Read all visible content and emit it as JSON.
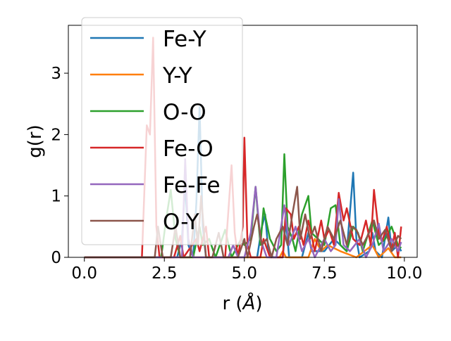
{
  "chart_data": {
    "type": "line",
    "xlabel": "r",
    "xlabel_unit": "Å",
    "ylabel": "g(r)",
    "xlim": [
      -0.5,
      10.4
    ],
    "ylim": [
      0,
      3.78
    ],
    "x_ticks": [
      "0.0",
      "2.5",
      "5.0",
      "7.5",
      "10.0"
    ],
    "x_tick_values": [
      0,
      2.5,
      5.0,
      7.5,
      10.0
    ],
    "y_ticks": [
      "0",
      "1",
      "2",
      "3"
    ],
    "y_tick_values": [
      0,
      1,
      2,
      3
    ],
    "grid": false,
    "legend_position": "upper-left",
    "series": [
      {
        "name": "Fe-Y",
        "color": "#1f77b4",
        "points": [
          [
            0,
            0
          ],
          [
            1.95,
            0
          ],
          [
            2.4,
            0
          ],
          [
            2.9,
            0
          ],
          [
            3.05,
            0.3
          ],
          [
            3.15,
            1.2
          ],
          [
            3.25,
            0.2
          ],
          [
            3.4,
            0
          ],
          [
            3.5,
            0.9
          ],
          [
            3.6,
            2.45
          ],
          [
            3.7,
            0.5
          ],
          [
            3.8,
            0
          ],
          [
            4.0,
            0
          ],
          [
            4.5,
            0
          ],
          [
            5.0,
            0
          ],
          [
            5.4,
            0
          ],
          [
            5.55,
            0.5
          ],
          [
            5.65,
            0.7
          ],
          [
            5.75,
            0.1
          ],
          [
            5.9,
            0
          ],
          [
            6.2,
            0
          ],
          [
            6.3,
            0.6
          ],
          [
            6.4,
            0
          ],
          [
            6.8,
            0
          ],
          [
            7.0,
            0.4
          ],
          [
            7.1,
            0.1
          ],
          [
            7.5,
            0.1
          ],
          [
            7.8,
            0.3
          ],
          [
            8.0,
            0.2
          ],
          [
            8.2,
            0.1
          ],
          [
            8.4,
            1.38
          ],
          [
            8.5,
            0.3
          ],
          [
            8.6,
            0
          ],
          [
            8.9,
            0.1
          ],
          [
            9.0,
            0.4
          ],
          [
            9.1,
            0.1
          ],
          [
            9.3,
            0
          ],
          [
            9.5,
            0.65
          ],
          [
            9.6,
            0.1
          ],
          [
            9.8,
            0.2
          ],
          [
            9.9,
            0.1
          ]
        ]
      },
      {
        "name": "Y-Y",
        "color": "#ff7f0e",
        "points": [
          [
            0,
            0
          ],
          [
            5.0,
            0
          ],
          [
            6.1,
            0
          ],
          [
            6.2,
            0.1
          ],
          [
            6.3,
            0
          ],
          [
            7.0,
            0
          ],
          [
            7.2,
            0.3
          ],
          [
            7.4,
            0.1
          ],
          [
            7.6,
            0.2
          ],
          [
            8.0,
            0.1
          ],
          [
            8.5,
            0
          ],
          [
            9.0,
            0.2
          ],
          [
            9.2,
            0
          ],
          [
            9.5,
            0.15
          ],
          [
            9.7,
            0
          ],
          [
            9.9,
            0
          ]
        ]
      },
      {
        "name": "O-O",
        "color": "#2ca02c",
        "points": [
          [
            0,
            0
          ],
          [
            2.4,
            0
          ],
          [
            2.55,
            0.6
          ],
          [
            2.7,
            1.1
          ],
          [
            2.85,
            0.3
          ],
          [
            3.0,
            0
          ],
          [
            3.4,
            0
          ],
          [
            3.6,
            0.5
          ],
          [
            3.7,
            0.2
          ],
          [
            3.9,
            0.3
          ],
          [
            4.1,
            0
          ],
          [
            4.4,
            0.45
          ],
          [
            4.6,
            0
          ],
          [
            4.9,
            0.3
          ],
          [
            5.0,
            0.2
          ],
          [
            5.2,
            0.3
          ],
          [
            5.35,
            1.15
          ],
          [
            5.5,
            0.2
          ],
          [
            5.6,
            0.8
          ],
          [
            5.8,
            0.3
          ],
          [
            6.0,
            0.1
          ],
          [
            6.15,
            0.2
          ],
          [
            6.25,
            1.68
          ],
          [
            6.35,
            0.5
          ],
          [
            6.5,
            0.3
          ],
          [
            6.6,
            0.1
          ],
          [
            6.8,
            0.7
          ],
          [
            7.0,
            1.0
          ],
          [
            7.1,
            0.4
          ],
          [
            7.3,
            0.3
          ],
          [
            7.5,
            0.2
          ],
          [
            7.7,
            0.8
          ],
          [
            7.85,
            0.85
          ],
          [
            8.0,
            0.2
          ],
          [
            8.2,
            0.1
          ],
          [
            8.4,
            0.5
          ],
          [
            8.55,
            0.4
          ],
          [
            8.7,
            0.1
          ],
          [
            9.0,
            0.6
          ],
          [
            9.2,
            0.2
          ],
          [
            9.4,
            0.3
          ],
          [
            9.6,
            0.5
          ],
          [
            9.8,
            0.2
          ],
          [
            9.9,
            0.15
          ]
        ]
      },
      {
        "name": "Fe-O",
        "color": "#d62728",
        "points": [
          [
            0,
            0
          ],
          [
            1.8,
            0
          ],
          [
            1.95,
            2.15
          ],
          [
            2.05,
            2.0
          ],
          [
            2.15,
            3.58
          ],
          [
            2.25,
            0.5
          ],
          [
            2.35,
            0
          ],
          [
            2.8,
            0
          ],
          [
            3.0,
            0.35
          ],
          [
            3.1,
            0
          ],
          [
            3.5,
            0.3
          ],
          [
            3.6,
            0.1
          ],
          [
            3.8,
            0.5
          ],
          [
            3.9,
            0
          ],
          [
            4.4,
            0
          ],
          [
            4.6,
            1.5
          ],
          [
            4.7,
            0.4
          ],
          [
            4.8,
            0
          ],
          [
            4.95,
            0.5
          ],
          [
            5.0,
            1.95
          ],
          [
            5.1,
            0.2
          ],
          [
            5.2,
            0
          ],
          [
            5.5,
            0
          ],
          [
            5.6,
            0.3
          ],
          [
            5.8,
            0
          ],
          [
            6.2,
            0
          ],
          [
            6.3,
            0.8
          ],
          [
            6.45,
            0.7
          ],
          [
            6.55,
            0.3
          ],
          [
            6.7,
            0.5
          ],
          [
            6.85,
            0.2
          ],
          [
            7.0,
            0.6
          ],
          [
            7.2,
            0.1
          ],
          [
            7.4,
            0.6
          ],
          [
            7.5,
            0.3
          ],
          [
            7.65,
            0.45
          ],
          [
            7.8,
            0.2
          ],
          [
            7.95,
            1.05
          ],
          [
            8.1,
            0.6
          ],
          [
            8.2,
            0.8
          ],
          [
            8.4,
            0.3
          ],
          [
            8.6,
            0.2
          ],
          [
            8.8,
            0.6
          ],
          [
            8.95,
            0.2
          ],
          [
            9.05,
            1.1
          ],
          [
            9.2,
            0.4
          ],
          [
            9.3,
            0.25
          ],
          [
            9.45,
            0.5
          ],
          [
            9.6,
            0.1
          ],
          [
            9.7,
            0.4
          ],
          [
            9.8,
            0
          ],
          [
            9.9,
            0.5
          ]
        ]
      },
      {
        "name": "Fe-Fe",
        "color": "#9467bd",
        "points": [
          [
            0,
            0
          ],
          [
            3.05,
            0
          ],
          [
            3.15,
            1.6
          ],
          [
            3.25,
            0.3
          ],
          [
            3.4,
            0
          ],
          [
            4.5,
            0
          ],
          [
            4.65,
            0.2
          ],
          [
            4.8,
            0
          ],
          [
            5.0,
            0
          ],
          [
            5.2,
            0.4
          ],
          [
            5.35,
            1.15
          ],
          [
            5.5,
            0.3
          ],
          [
            5.7,
            0
          ],
          [
            6.0,
            0
          ],
          [
            6.25,
            0.85
          ],
          [
            6.4,
            0.2
          ],
          [
            6.6,
            0.5
          ],
          [
            6.8,
            0.1
          ],
          [
            7.0,
            0.3
          ],
          [
            7.2,
            0
          ],
          [
            7.5,
            0.3
          ],
          [
            7.7,
            0.1
          ],
          [
            7.85,
            0.2
          ],
          [
            7.95,
            0.95
          ],
          [
            8.1,
            0.2
          ],
          [
            8.3,
            0.1
          ],
          [
            8.6,
            0.3
          ],
          [
            8.8,
            0
          ],
          [
            9.0,
            0.2
          ],
          [
            9.2,
            0.55
          ],
          [
            9.35,
            0.1
          ],
          [
            9.6,
            0.3
          ],
          [
            9.8,
            0.1
          ],
          [
            9.9,
            0.25
          ]
        ]
      },
      {
        "name": "O-Y",
        "color": "#8c564b",
        "points": [
          [
            0,
            0
          ],
          [
            2.2,
            0
          ],
          [
            2.3,
            0.5
          ],
          [
            2.45,
            0
          ],
          [
            2.7,
            0
          ],
          [
            2.85,
            0.5
          ],
          [
            3.0,
            0
          ],
          [
            3.3,
            0
          ],
          [
            3.45,
            0.7
          ],
          [
            3.55,
            0.2
          ],
          [
            3.65,
            1.0
          ],
          [
            3.8,
            0
          ],
          [
            4.0,
            0
          ],
          [
            4.2,
            0.4
          ],
          [
            4.35,
            0
          ],
          [
            4.8,
            0
          ],
          [
            5.0,
            0.3
          ],
          [
            5.1,
            0
          ],
          [
            5.3,
            0.5
          ],
          [
            5.4,
            0.7
          ],
          [
            5.55,
            0.2
          ],
          [
            5.7,
            0.3
          ],
          [
            5.85,
            0
          ],
          [
            6.0,
            0.3
          ],
          [
            6.2,
            0.5
          ],
          [
            6.35,
            0.2
          ],
          [
            6.5,
            0.7
          ],
          [
            6.65,
            1.15
          ],
          [
            6.75,
            0.3
          ],
          [
            6.9,
            0.7
          ],
          [
            7.05,
            0.3
          ],
          [
            7.2,
            0.5
          ],
          [
            7.4,
            0.1
          ],
          [
            7.6,
            0.5
          ],
          [
            7.8,
            0.3
          ],
          [
            8.0,
            0.6
          ],
          [
            8.2,
            0.2
          ],
          [
            8.35,
            0.5
          ],
          [
            8.5,
            0.45
          ],
          [
            8.7,
            0.2
          ],
          [
            8.9,
            0.4
          ],
          [
            9.05,
            0.6
          ],
          [
            9.2,
            0.3
          ],
          [
            9.4,
            0.45
          ],
          [
            9.6,
            0.1
          ],
          [
            9.8,
            0.35
          ],
          [
            9.9,
            0.3
          ]
        ]
      }
    ]
  }
}
